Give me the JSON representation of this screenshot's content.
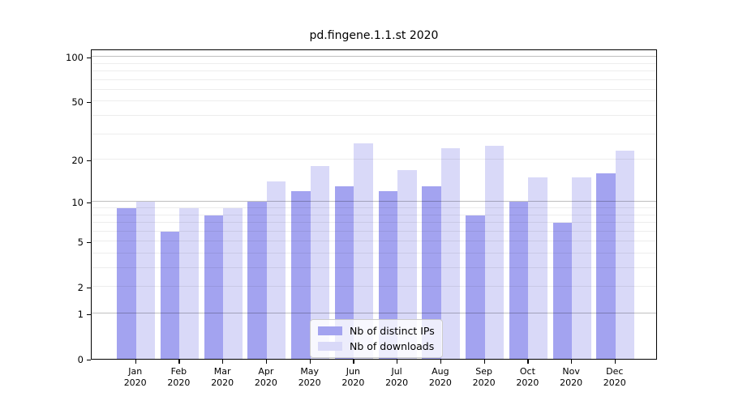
{
  "chart_data": {
    "type": "bar",
    "title": "pd.fingene.1.1.st 2020",
    "categories": [
      "Jan",
      "Feb",
      "Mar",
      "Apr",
      "May",
      "Jun",
      "Jul",
      "Aug",
      "Sep",
      "Oct",
      "Nov",
      "Dec"
    ],
    "year_label": "2020",
    "series": [
      {
        "name": "Nb of distinct IPs",
        "color": "#a3a3f0",
        "values": [
          9,
          6,
          8,
          10,
          12,
          13,
          12,
          13,
          8,
          10,
          7,
          16
        ]
      },
      {
        "name": "Nb of downloads",
        "color": "#d9d9f8",
        "values": [
          10,
          9,
          9,
          14,
          18,
          26,
          17,
          24,
          25,
          15,
          15,
          23
        ]
      }
    ],
    "y_scale": "log1p",
    "y_ticks": [
      0,
      1,
      2,
      5,
      10,
      20,
      50,
      100
    ],
    "y_grid_major": [
      1,
      10,
      100
    ],
    "y_grid_minor": [
      2,
      3,
      4,
      5,
      6,
      7,
      8,
      9,
      20,
      30,
      40,
      50,
      60,
      70,
      80,
      90
    ],
    "ylim": [
      0,
      113.5
    ],
    "xlabel": "",
    "ylabel": "",
    "grid": "horizontal",
    "legend_position": "bottom-center"
  }
}
